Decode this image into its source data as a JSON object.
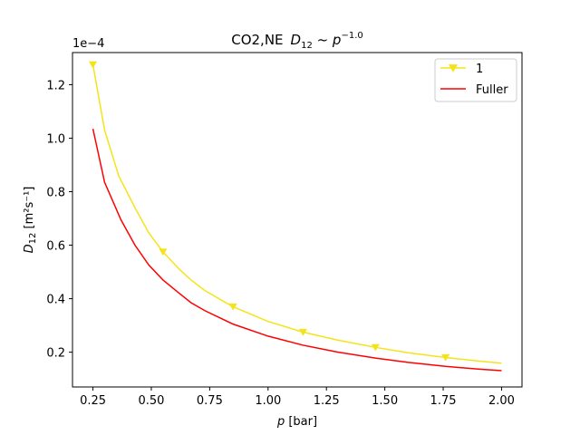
{
  "chart_data": {
    "type": "line",
    "title_prefix": "CO2,NE",
    "title_math": "D",
    "title_math_sub": "12",
    "title_math_rest": " ~ p",
    "title_math_sup": "−1.0",
    "xlabel_math": "p",
    "xlabel_rest": " [bar]",
    "ylabel_math": "D",
    "ylabel_sub": "12",
    "ylabel_rest": " [m²s⁻¹]",
    "y_offset_text": "1e−4",
    "xlim": [
      0.1625,
      2.0875
    ],
    "ylim": [
      0.07,
      1.32
    ],
    "x_ticks": [
      0.25,
      0.5,
      0.75,
      1.0,
      1.25,
      1.5,
      1.75,
      2.0
    ],
    "x_tick_labels": [
      "0.25",
      "0.50",
      "0.75",
      "1.00",
      "1.25",
      "1.50",
      "1.75",
      "2.00"
    ],
    "y_ticks": [
      0.2,
      0.4,
      0.6,
      0.8,
      1.0,
      1.2
    ],
    "y_tick_labels": [
      "0.2",
      "0.4",
      "0.6",
      "0.8",
      "1.0",
      "1.2"
    ],
    "grid": false,
    "legend_position": "upper right",
    "series": [
      {
        "name": "1",
        "color": "#f5e31a",
        "marker": "triangle-down",
        "x": [
          0.25,
          0.3,
          0.36,
          0.43,
          0.49,
          0.55,
          0.62,
          0.67,
          0.73,
          0.85,
          1.0,
          1.15,
          1.3,
          1.46,
          1.6,
          1.76,
          1.9,
          2.0
        ],
        "values": [
          1.275,
          1.03,
          0.86,
          0.74,
          0.645,
          0.575,
          0.51,
          0.47,
          0.43,
          0.37,
          0.315,
          0.275,
          0.245,
          0.218,
          0.198,
          0.18,
          0.167,
          0.159
        ],
        "marker_x": [
          0.25,
          0.55,
          0.85,
          1.15,
          1.46,
          1.76
        ],
        "marker_values": [
          1.275,
          0.575,
          0.37,
          0.275,
          0.218,
          0.18
        ]
      },
      {
        "name": "Fuller",
        "color": "#ff0000",
        "marker": "none",
        "x": [
          0.25,
          0.3,
          0.37,
          0.43,
          0.49,
          0.55,
          0.62,
          0.67,
          0.73,
          0.85,
          1.0,
          1.15,
          1.3,
          1.46,
          1.6,
          1.76,
          1.9,
          2.0
        ],
        "values": [
          1.035,
          0.835,
          0.695,
          0.6,
          0.525,
          0.47,
          0.42,
          0.385,
          0.355,
          0.305,
          0.26,
          0.226,
          0.2,
          0.178,
          0.162,
          0.147,
          0.137,
          0.131
        ]
      }
    ]
  }
}
